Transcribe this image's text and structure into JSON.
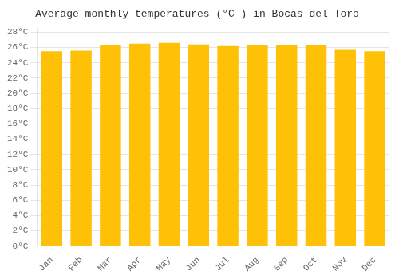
{
  "chart_data": {
    "type": "bar",
    "title": "Average monthly temperatures (°C ) in Bocas del Toro",
    "categories": [
      "Jan",
      "Feb",
      "Mar",
      "Apr",
      "May",
      "Jun",
      "Jul",
      "Aug",
      "Sep",
      "Oct",
      "Nov",
      "Dec"
    ],
    "values": [
      25.5,
      25.6,
      26.3,
      26.5,
      26.6,
      26.4,
      26.2,
      26.3,
      26.3,
      26.3,
      25.7,
      25.5
    ],
    "color": "#FFC107",
    "ylim": [
      0,
      28.5
    ],
    "yticks": [
      {
        "value": 0,
        "label": "0°C"
      },
      {
        "value": 2,
        "label": "2°C"
      },
      {
        "value": 4,
        "label": "4°C"
      },
      {
        "value": 6,
        "label": "6°C"
      },
      {
        "value": 8,
        "label": "8°C"
      },
      {
        "value": 10,
        "label": "10°C"
      },
      {
        "value": 12,
        "label": "12°C"
      },
      {
        "value": 14,
        "label": "14°C"
      },
      {
        "value": 16,
        "label": "16°C"
      },
      {
        "value": 18,
        "label": "18°C"
      },
      {
        "value": 20,
        "label": "20°C"
      },
      {
        "value": 22,
        "label": "22°C"
      },
      {
        "value": 24,
        "label": "24°C"
      },
      {
        "value": 26,
        "label": "26°C"
      },
      {
        "value": 28,
        "label": "28°C"
      }
    ],
    "grid": true
  }
}
